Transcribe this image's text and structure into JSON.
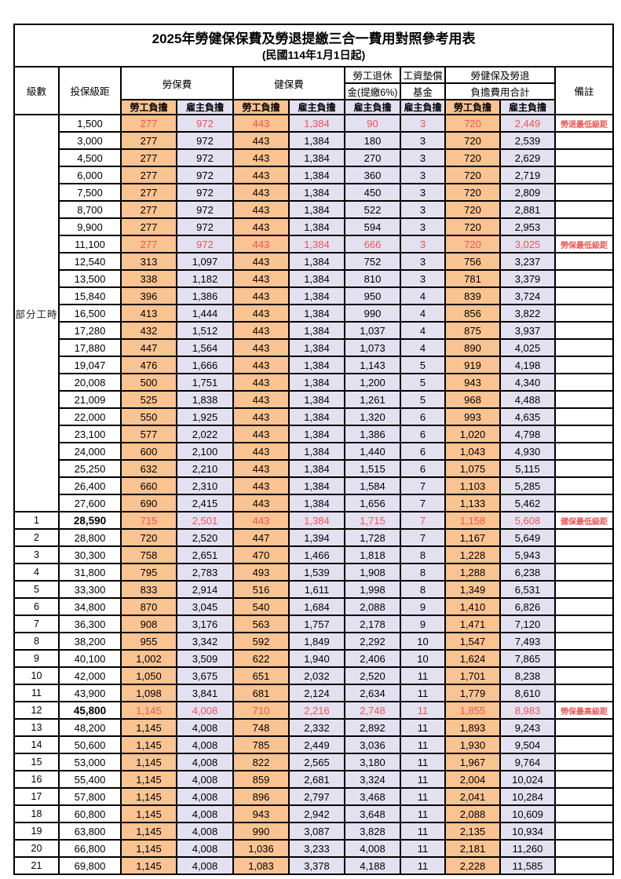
{
  "title": "2025年勞健保保費及勞退提繳三合一費用對照參考用表",
  "subtitle": "(民國114年1月1日起)",
  "header": {
    "level": "級數",
    "bracket": "投保級距",
    "labor_insurance": "勞保費",
    "health_insurance": "健保費",
    "pension_line1": "勞工退休",
    "pension_line2": "金(提繳6%)",
    "wage_fund_line1": "工資墊償",
    "wage_fund_line2": "基金",
    "total_line1": "勞健保及勞退",
    "total_line2": "負擔費用合計",
    "remark": "備註",
    "employee_share": "勞工負擔",
    "employer_share": "雇主負擔"
  },
  "part_time_label": "部分工時",
  "colors": {
    "employee_bg": "#FAC392",
    "employer_bg": "#E3E0F0",
    "highlight_red": "#F05454",
    "border": "#000000"
  },
  "rows": [
    {
      "level": "",
      "bracket": "1,500",
      "v": [
        "277",
        "972",
        "443",
        "1,384",
        "90",
        "3",
        "720",
        "2,449"
      ],
      "remark": "勞退最低級距",
      "red": true,
      "bold": false
    },
    {
      "level": "",
      "bracket": "3,000",
      "v": [
        "277",
        "972",
        "443",
        "1,384",
        "180",
        "3",
        "720",
        "2,539"
      ],
      "remark": "",
      "red": false,
      "bold": false
    },
    {
      "level": "",
      "bracket": "4,500",
      "v": [
        "277",
        "972",
        "443",
        "1,384",
        "270",
        "3",
        "720",
        "2,629"
      ],
      "remark": "",
      "red": false,
      "bold": false
    },
    {
      "level": "",
      "bracket": "6,000",
      "v": [
        "277",
        "972",
        "443",
        "1,384",
        "360",
        "3",
        "720",
        "2,719"
      ],
      "remark": "",
      "red": false,
      "bold": false
    },
    {
      "level": "",
      "bracket": "7,500",
      "v": [
        "277",
        "972",
        "443",
        "1,384",
        "450",
        "3",
        "720",
        "2,809"
      ],
      "remark": "",
      "red": false,
      "bold": false
    },
    {
      "level": "",
      "bracket": "8,700",
      "v": [
        "277",
        "972",
        "443",
        "1,384",
        "522",
        "3",
        "720",
        "2,881"
      ],
      "remark": "",
      "red": false,
      "bold": false
    },
    {
      "level": "",
      "bracket": "9,900",
      "v": [
        "277",
        "972",
        "443",
        "1,384",
        "594",
        "3",
        "720",
        "2,953"
      ],
      "remark": "",
      "red": false,
      "bold": false
    },
    {
      "level": "",
      "bracket": "11,100",
      "v": [
        "277",
        "972",
        "443",
        "1,384",
        "666",
        "3",
        "720",
        "3,025"
      ],
      "remark": "勞保最低級距",
      "red": true,
      "bold": false
    },
    {
      "level": "",
      "bracket": "12,540",
      "v": [
        "313",
        "1,097",
        "443",
        "1,384",
        "752",
        "3",
        "756",
        "3,237"
      ],
      "remark": "",
      "red": false,
      "bold": false
    },
    {
      "level": "",
      "bracket": "13,500",
      "v": [
        "338",
        "1,182",
        "443",
        "1,384",
        "810",
        "3",
        "781",
        "3,379"
      ],
      "remark": "",
      "red": false,
      "bold": false
    },
    {
      "level": "",
      "bracket": "15,840",
      "v": [
        "396",
        "1,386",
        "443",
        "1,384",
        "950",
        "4",
        "839",
        "3,724"
      ],
      "remark": "",
      "red": false,
      "bold": false
    },
    {
      "level": "",
      "bracket": "16,500",
      "v": [
        "413",
        "1,444",
        "443",
        "1,384",
        "990",
        "4",
        "856",
        "3,822"
      ],
      "remark": "",
      "red": false,
      "bold": false
    },
    {
      "level": "",
      "bracket": "17,280",
      "v": [
        "432",
        "1,512",
        "443",
        "1,384",
        "1,037",
        "4",
        "875",
        "3,937"
      ],
      "remark": "",
      "red": false,
      "bold": false
    },
    {
      "level": "",
      "bracket": "17,880",
      "v": [
        "447",
        "1,564",
        "443",
        "1,384",
        "1,073",
        "4",
        "890",
        "4,025"
      ],
      "remark": "",
      "red": false,
      "bold": false
    },
    {
      "level": "",
      "bracket": "19,047",
      "v": [
        "476",
        "1,666",
        "443",
        "1,384",
        "1,143",
        "5",
        "919",
        "4,198"
      ],
      "remark": "",
      "red": false,
      "bold": false
    },
    {
      "level": "",
      "bracket": "20,008",
      "v": [
        "500",
        "1,751",
        "443",
        "1,384",
        "1,200",
        "5",
        "943",
        "4,340"
      ],
      "remark": "",
      "red": false,
      "bold": false
    },
    {
      "level": "",
      "bracket": "21,009",
      "v": [
        "525",
        "1,838",
        "443",
        "1,384",
        "1,261",
        "5",
        "968",
        "4,488"
      ],
      "remark": "",
      "red": false,
      "bold": false
    },
    {
      "level": "",
      "bracket": "22,000",
      "v": [
        "550",
        "1,925",
        "443",
        "1,384",
        "1,320",
        "6",
        "993",
        "4,635"
      ],
      "remark": "",
      "red": false,
      "bold": false
    },
    {
      "level": "",
      "bracket": "23,100",
      "v": [
        "577",
        "2,022",
        "443",
        "1,384",
        "1,386",
        "6",
        "1,020",
        "4,798"
      ],
      "remark": "",
      "red": false,
      "bold": false
    },
    {
      "level": "",
      "bracket": "24,000",
      "v": [
        "600",
        "2,100",
        "443",
        "1,384",
        "1,440",
        "6",
        "1,043",
        "4,930"
      ],
      "remark": "",
      "red": false,
      "bold": false
    },
    {
      "level": "",
      "bracket": "25,250",
      "v": [
        "632",
        "2,210",
        "443",
        "1,384",
        "1,515",
        "6",
        "1,075",
        "5,115"
      ],
      "remark": "",
      "red": false,
      "bold": false
    },
    {
      "level": "",
      "bracket": "26,400",
      "v": [
        "660",
        "2,310",
        "443",
        "1,384",
        "1,584",
        "7",
        "1,103",
        "5,285"
      ],
      "remark": "",
      "red": false,
      "bold": false
    },
    {
      "level": "",
      "bracket": "27,600",
      "v": [
        "690",
        "2,415",
        "443",
        "1,384",
        "1,656",
        "7",
        "1,133",
        "5,462"
      ],
      "remark": "",
      "red": false,
      "bold": false
    },
    {
      "level": "1",
      "bracket": "28,590",
      "v": [
        "715",
        "2,501",
        "443",
        "1,384",
        "1,715",
        "7",
        "1,158",
        "5,608"
      ],
      "remark": "健保最低級距",
      "red": true,
      "bold": true
    },
    {
      "level": "2",
      "bracket": "28,800",
      "v": [
        "720",
        "2,520",
        "447",
        "1,394",
        "1,728",
        "7",
        "1,167",
        "5,649"
      ],
      "remark": "",
      "red": false,
      "bold": false
    },
    {
      "level": "3",
      "bracket": "30,300",
      "v": [
        "758",
        "2,651",
        "470",
        "1,466",
        "1,818",
        "8",
        "1,228",
        "5,943"
      ],
      "remark": "",
      "red": false,
      "bold": false
    },
    {
      "level": "4",
      "bracket": "31,800",
      "v": [
        "795",
        "2,783",
        "493",
        "1,539",
        "1,908",
        "8",
        "1,288",
        "6,238"
      ],
      "remark": "",
      "red": false,
      "bold": false
    },
    {
      "level": "5",
      "bracket": "33,300",
      "v": [
        "833",
        "2,914",
        "516",
        "1,611",
        "1,998",
        "8",
        "1,349",
        "6,531"
      ],
      "remark": "",
      "red": false,
      "bold": false
    },
    {
      "level": "6",
      "bracket": "34,800",
      "v": [
        "870",
        "3,045",
        "540",
        "1,684",
        "2,088",
        "9",
        "1,410",
        "6,826"
      ],
      "remark": "",
      "red": false,
      "bold": false
    },
    {
      "level": "7",
      "bracket": "36,300",
      "v": [
        "908",
        "3,176",
        "563",
        "1,757",
        "2,178",
        "9",
        "1,471",
        "7,120"
      ],
      "remark": "",
      "red": false,
      "bold": false
    },
    {
      "level": "8",
      "bracket": "38,200",
      "v": [
        "955",
        "3,342",
        "592",
        "1,849",
        "2,292",
        "10",
        "1,547",
        "7,493"
      ],
      "remark": "",
      "red": false,
      "bold": false
    },
    {
      "level": "9",
      "bracket": "40,100",
      "v": [
        "1,002",
        "3,509",
        "622",
        "1,940",
        "2,406",
        "10",
        "1,624",
        "7,865"
      ],
      "remark": "",
      "red": false,
      "bold": false
    },
    {
      "level": "10",
      "bracket": "42,000",
      "v": [
        "1,050",
        "3,675",
        "651",
        "2,032",
        "2,520",
        "11",
        "1,701",
        "8,238"
      ],
      "remark": "",
      "red": false,
      "bold": false
    },
    {
      "level": "11",
      "bracket": "43,900",
      "v": [
        "1,098",
        "3,841",
        "681",
        "2,124",
        "2,634",
        "11",
        "1,779",
        "8,610"
      ],
      "remark": "",
      "red": false,
      "bold": false
    },
    {
      "level": "12",
      "bracket": "45,800",
      "v": [
        "1,145",
        "4,008",
        "710",
        "2,216",
        "2,748",
        "11",
        "1,855",
        "8,983"
      ],
      "remark": "勞保最高級距",
      "red": true,
      "bold": true
    },
    {
      "level": "13",
      "bracket": "48,200",
      "v": [
        "1,145",
        "4,008",
        "748",
        "2,332",
        "2,892",
        "11",
        "1,893",
        "9,243"
      ],
      "remark": "",
      "red": false,
      "bold": false
    },
    {
      "level": "14",
      "bracket": "50,600",
      "v": [
        "1,145",
        "4,008",
        "785",
        "2,449",
        "3,036",
        "11",
        "1,930",
        "9,504"
      ],
      "remark": "",
      "red": false,
      "bold": false
    },
    {
      "level": "15",
      "bracket": "53,000",
      "v": [
        "1,145",
        "4,008",
        "822",
        "2,565",
        "3,180",
        "11",
        "1,967",
        "9,764"
      ],
      "remark": "",
      "red": false,
      "bold": false
    },
    {
      "level": "16",
      "bracket": "55,400",
      "v": [
        "1,145",
        "4,008",
        "859",
        "2,681",
        "3,324",
        "11",
        "2,004",
        "10,024"
      ],
      "remark": "",
      "red": false,
      "bold": false
    },
    {
      "level": "17",
      "bracket": "57,800",
      "v": [
        "1,145",
        "4,008",
        "896",
        "2,797",
        "3,468",
        "11",
        "2,041",
        "10,284"
      ],
      "remark": "",
      "red": false,
      "bold": false
    },
    {
      "level": "18",
      "bracket": "60,800",
      "v": [
        "1,145",
        "4,008",
        "943",
        "2,942",
        "3,648",
        "11",
        "2,088",
        "10,609"
      ],
      "remark": "",
      "red": false,
      "bold": false
    },
    {
      "level": "19",
      "bracket": "63,800",
      "v": [
        "1,145",
        "4,008",
        "990",
        "3,087",
        "3,828",
        "11",
        "2,135",
        "10,934"
      ],
      "remark": "",
      "red": false,
      "bold": false
    },
    {
      "level": "20",
      "bracket": "66,800",
      "v": [
        "1,145",
        "4,008",
        "1,036",
        "3,233",
        "4,008",
        "11",
        "2,181",
        "11,260"
      ],
      "remark": "",
      "red": false,
      "bold": false
    },
    {
      "level": "21",
      "bracket": "69,800",
      "v": [
        "1,145",
        "4,008",
        "1,083",
        "3,378",
        "4,188",
        "11",
        "2,228",
        "11,585"
      ],
      "remark": "",
      "red": false,
      "bold": false
    }
  ]
}
